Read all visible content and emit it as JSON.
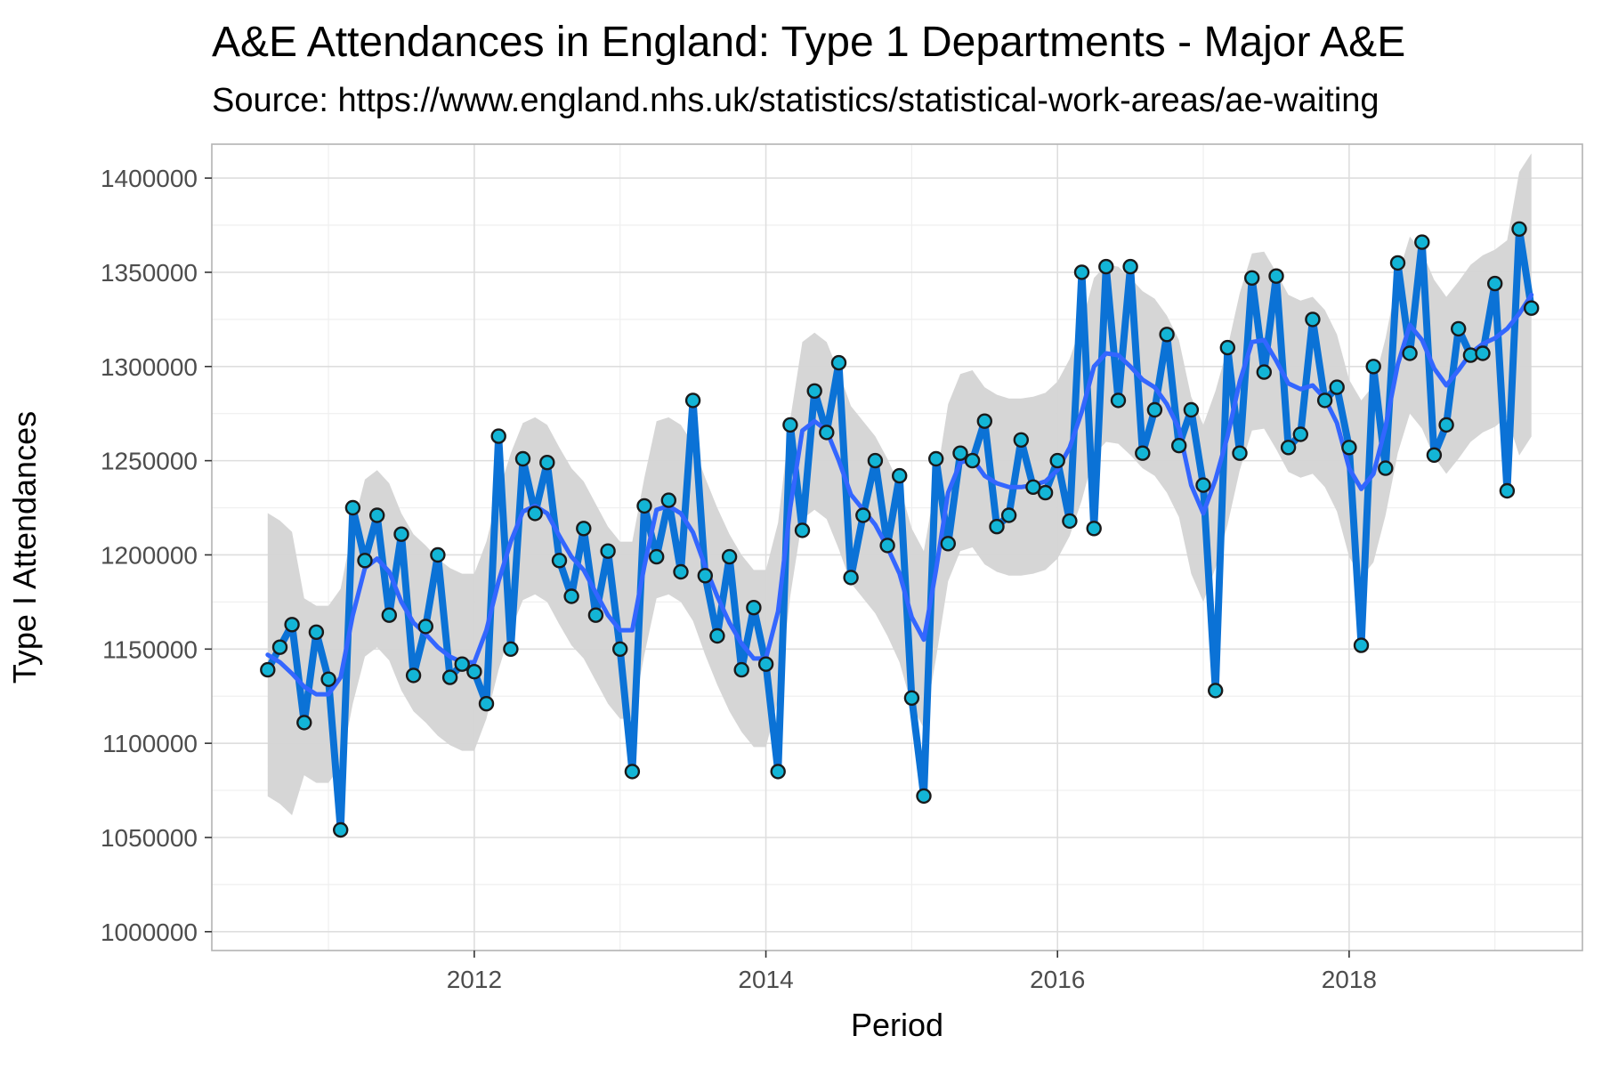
{
  "chart_data": {
    "type": "line",
    "title": "A&E Attendances in England: Type 1 Departments - Major A&E",
    "subtitle": "Source: https://www.england.nhs.uk/statistics/statistical-work-areas/ae-waiting",
    "xlabel": "Period",
    "ylabel": "Type I Attendances",
    "xlim": [
      2010.2,
      2019.6
    ],
    "ylim": [
      990000,
      1418000
    ],
    "x_ticks": [
      2012,
      2014,
      2016,
      2018
    ],
    "y_ticks": [
      1000000,
      1050000,
      1100000,
      1150000,
      1200000,
      1250000,
      1300000,
      1350000,
      1400000
    ],
    "grid": true,
    "legend": "none",
    "start": "2010-08",
    "series": [
      {
        "name": "",
        "kind": "observed",
        "values": [
          1139000,
          1151000,
          1163000,
          1111000,
          1159000,
          1134000,
          1054000,
          1225000,
          1197000,
          1221000,
          1168000,
          1211000,
          1136000,
          1162000,
          1200000,
          1135000,
          1142000,
          1138000,
          1121000,
          1263000,
          1150000,
          1251000,
          1222000,
          1249000,
          1197000,
          1178000,
          1214000,
          1168000,
          1202000,
          1150000,
          1085000,
          1226000,
          1199000,
          1229000,
          1191000,
          1282000,
          1189000,
          1157000,
          1199000,
          1139000,
          1172000,
          1142000,
          1085000,
          1269000,
          1213000,
          1287000,
          1265000,
          1302000,
          1188000,
          1221000,
          1250000,
          1205000,
          1242000,
          1124000,
          1072000,
          1251000,
          1206000,
          1254000,
          1250000,
          1271000,
          1215000,
          1221000,
          1261000,
          1236000,
          1233000,
          1250000,
          1218000,
          1350000,
          1214000,
          1353000,
          1282000,
          1353000,
          1254000,
          1277000,
          1317000,
          1258000,
          1277000,
          1237000,
          1128000,
          1310000,
          1254000,
          1347000,
          1297000,
          1348000,
          1257000,
          1264000,
          1325000,
          1282000,
          1289000,
          1257000,
          1152000,
          1300000,
          1246000,
          1355000,
          1307000,
          1366000,
          1253000,
          1269000,
          1320000,
          1306000,
          1307000,
          1344000,
          1234000,
          1373000,
          1331000
        ]
      },
      {
        "name": "",
        "kind": "smooth",
        "values": [
          1147000,
          1143000,
          1137000,
          1130000,
          1126000,
          1126000,
          1135000,
          1168000,
          1193000,
          1198000,
          1191000,
          1175000,
          1164000,
          1158000,
          1151000,
          1146000,
          1143000,
          1143000,
          1160000,
          1186000,
          1207000,
          1223000,
          1226000,
          1222000,
          1210000,
          1199000,
          1192000,
          1180000,
          1168000,
          1160000,
          1160000,
          1194000,
          1224000,
          1226000,
          1222000,
          1212000,
          1194000,
          1178000,
          1164000,
          1153000,
          1145000,
          1145000,
          1170000,
          1225000,
          1266000,
          1271000,
          1266000,
          1250000,
          1232000,
          1224000,
          1216000,
          1204000,
          1190000,
          1167000,
          1155000,
          1192000,
          1233000,
          1249000,
          1251000,
          1242000,
          1238000,
          1236000,
          1236000,
          1237000,
          1239000,
          1245000,
          1257000,
          1276000,
          1300000,
          1307000,
          1306000,
          1300000,
          1293000,
          1289000,
          1280000,
          1267000,
          1237000,
          1222000,
          1240000,
          1263000,
          1292000,
          1313000,
          1314000,
          1303000,
          1291000,
          1288000,
          1290000,
          1283000,
          1270000,
          1246000,
          1235000,
          1243000,
          1268000,
          1301000,
          1322000,
          1314000,
          1299000,
          1290000,
          1298000,
          1307000,
          1312000,
          1315000,
          1320000,
          1328000,
          1338000
        ]
      }
    ],
    "ribbon_halfwidth": 47000,
    "colors": {
      "observed_line": "#0b72d6",
      "smooth_line": "#3366ff",
      "ribbon": "#d4d4d4",
      "point_fill": "#13b5d6",
      "point_stroke": "#1a1a1a",
      "grid_major": "#dedede",
      "grid_minor": "#efefef",
      "panel_border": "#b3b3b3"
    }
  }
}
